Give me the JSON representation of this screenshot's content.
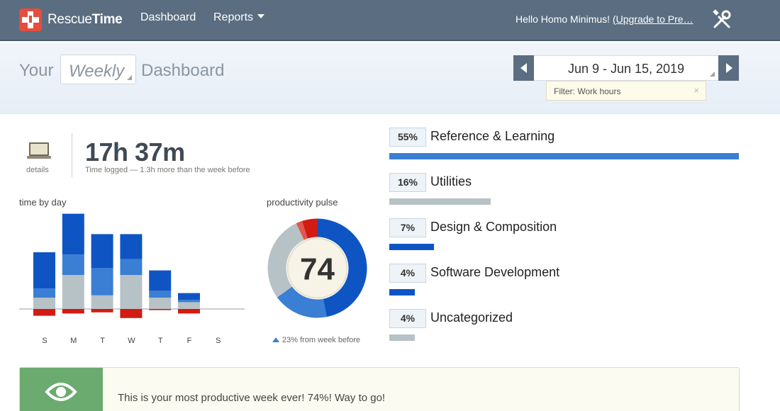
{
  "nav": {
    "brand_rescue": "Rescue",
    "brand_time": "Time",
    "dashboard": "Dashboard",
    "reports": "Reports",
    "greeting": "Hello Homo Minimus!",
    "upgrade_link": "(Upgrade to Pre…"
  },
  "header": {
    "title_prefix": "Your",
    "period": "Weekly",
    "title_suffix": "Dashboard",
    "date_range": "Jun 9 - Jun 15, 2019",
    "filter": "Filter: Work hours",
    "filter_close": "×"
  },
  "summary": {
    "details_label": "details",
    "time_logged": "17h 37m",
    "time_sub": "Time logged — 1.3h more than the week before"
  },
  "time_by_day": {
    "label": "time by day",
    "days": [
      "S",
      "M",
      "T",
      "W",
      "T",
      "F",
      "S"
    ]
  },
  "pulse": {
    "label": "productivity pulse",
    "score": "74",
    "change_note": "23% from week before"
  },
  "categories": [
    {
      "pct": "55%",
      "name": "Reference & Learning",
      "fraction": 0.55,
      "color": "#3b7fd4"
    },
    {
      "pct": "16%",
      "name": "Utilities",
      "fraction": 0.16,
      "color": "#b6c2c5"
    },
    {
      "pct": "7%",
      "name": "Design & Composition",
      "fraction": 0.07,
      "color": "#0e55c3"
    },
    {
      "pct": "4%",
      "name": "Software Development",
      "fraction": 0.04,
      "color": "#0e55c3"
    },
    {
      "pct": "4%",
      "name": "Uncategorized",
      "fraction": 0.04,
      "color": "#b6c2c5"
    }
  ],
  "banner": {
    "message": "This is your most productive week ever! 74%! Way to go!"
  },
  "colors": {
    "very_productive": "#0e55c3",
    "productive": "#3b7fd4",
    "neutral": "#b6c2c5",
    "distracting": "#e0584f",
    "very_distracting": "#d21b12"
  },
  "chart_data": [
    {
      "type": "bar",
      "title": "time by day",
      "categories": [
        "S",
        "M",
        "T",
        "W",
        "T",
        "F",
        "S"
      ],
      "stacked": true,
      "series": [
        {
          "values": [
            1.6,
            1.8,
            1.5,
            1.1,
            0.9,
            0.3,
            0
          ]
        },
        {
          "values": [
            0.4,
            0.9,
            1.2,
            0.7,
            0.3,
            0.1,
            0
          ]
        },
        {
          "values": [
            0.5,
            1.5,
            0.6,
            1.5,
            0.5,
            0.3,
            0
          ]
        },
        {
          "values": [
            -0.3,
            -0.2,
            -0.15,
            -0.4,
            -0.05,
            -0.2,
            0
          ]
        }
      ]
    },
    {
      "type": "pie",
      "title": "productivity pulse",
      "donut": true,
      "center_label": "74",
      "series": [
        {
          "values": [
            0.47,
            0.18,
            0.28,
            0.02,
            0.05
          ]
        }
      ]
    }
  ]
}
